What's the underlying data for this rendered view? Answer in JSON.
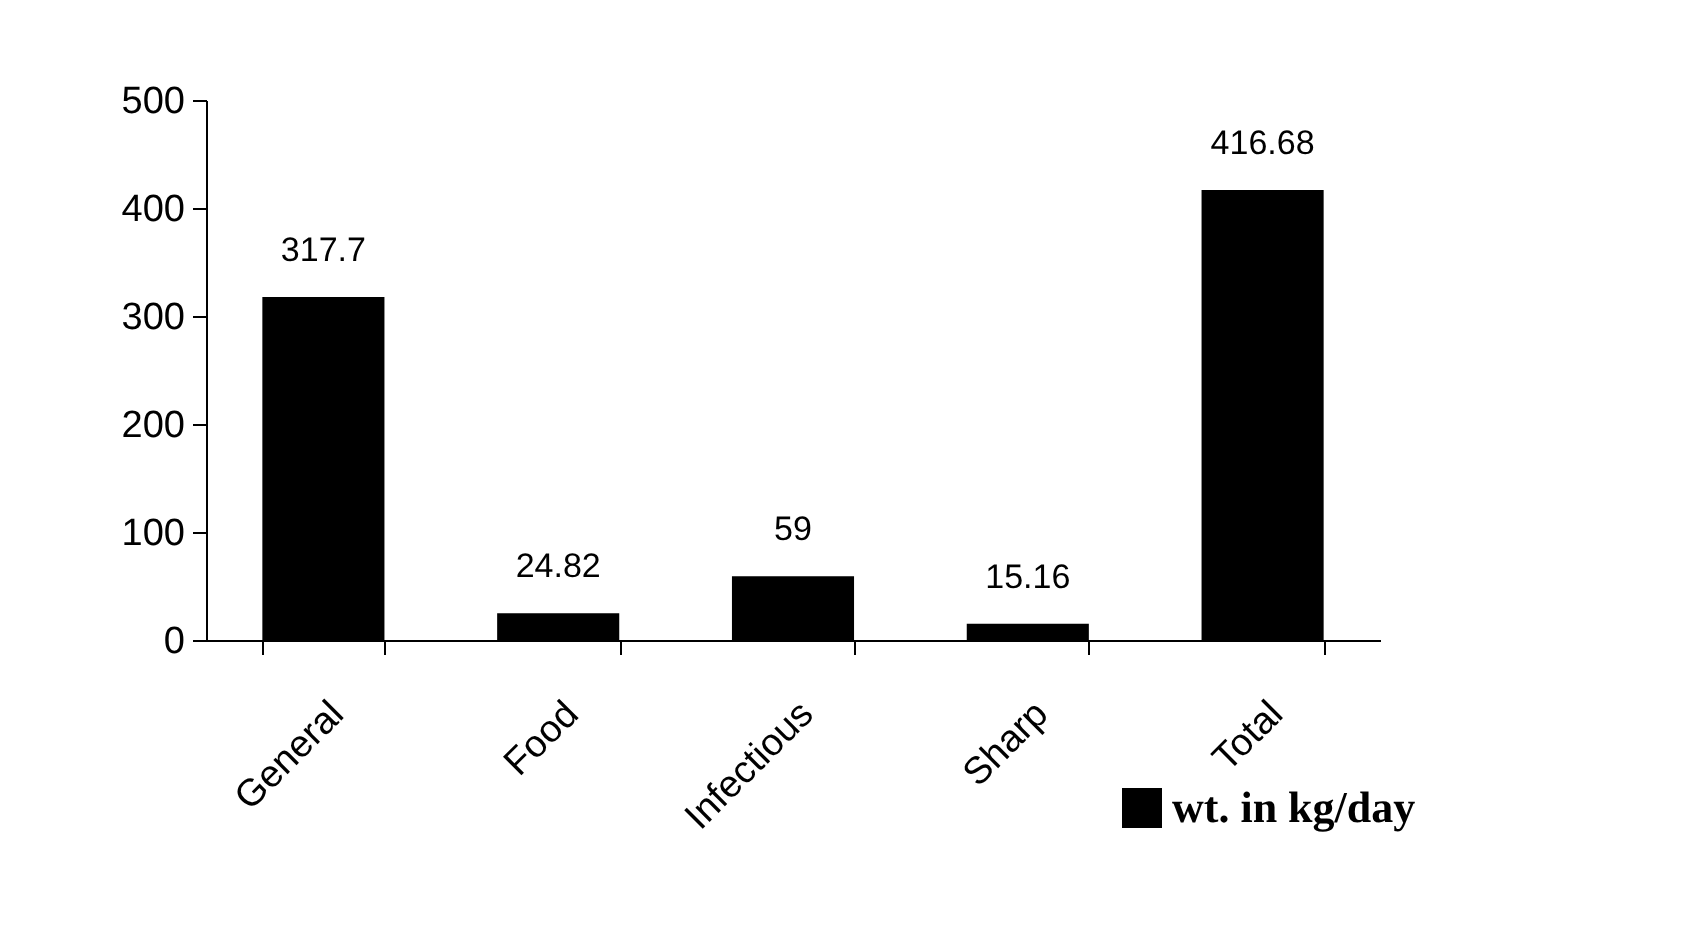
{
  "chart_data": {
    "type": "bar",
    "categories": [
      "General",
      "Food",
      "Infectious",
      "Sharp",
      "Total"
    ],
    "series": [
      {
        "name": "wt. in kg/day",
        "color": "#000000",
        "values": [
          317.7,
          24.82,
          59,
          15.16,
          416.68
        ]
      }
    ],
    "ylim": [
      0,
      500
    ],
    "yticks": [
      0,
      100,
      200,
      300,
      400,
      500
    ],
    "data_labels": true,
    "grid": false,
    "legend": "bottom right"
  }
}
